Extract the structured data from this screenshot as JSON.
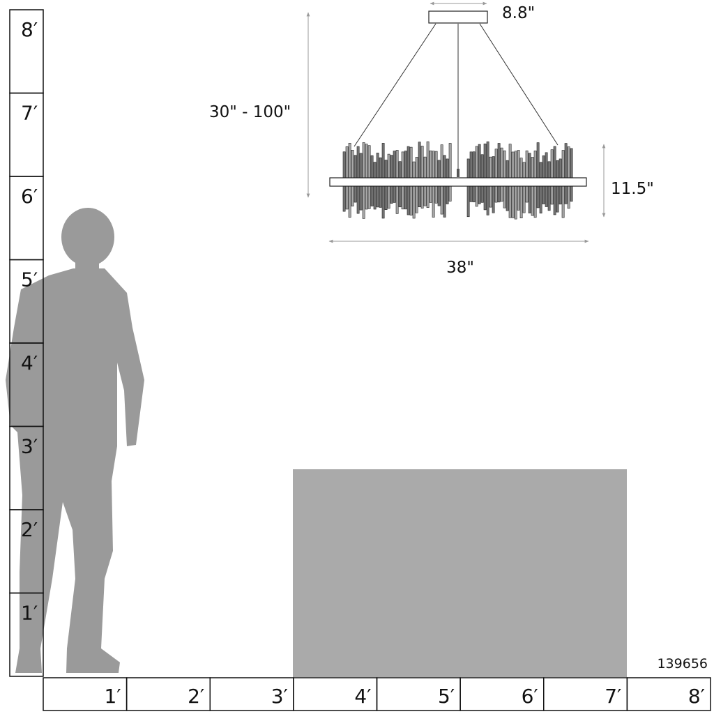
{
  "dimensions": {
    "canopy_width": "8.8\"",
    "drop_height": "30\" - 100\"",
    "fixture_height": "11.5\"",
    "fixture_width": "38\""
  },
  "product_code": "139656",
  "vertical_ruler": [
    "8′",
    "7′",
    "6′",
    "5′",
    "4′",
    "3′",
    "2′",
    "1′"
  ],
  "horizontal_ruler": [
    "1′",
    "2′",
    "3′",
    "4′",
    "5′",
    "6′",
    "7′",
    "8′"
  ],
  "colors": {
    "silhouette": "#9a9a9a",
    "table_block": "#aaaaaa",
    "dimension_line": "#999999",
    "outline": "#111111"
  }
}
